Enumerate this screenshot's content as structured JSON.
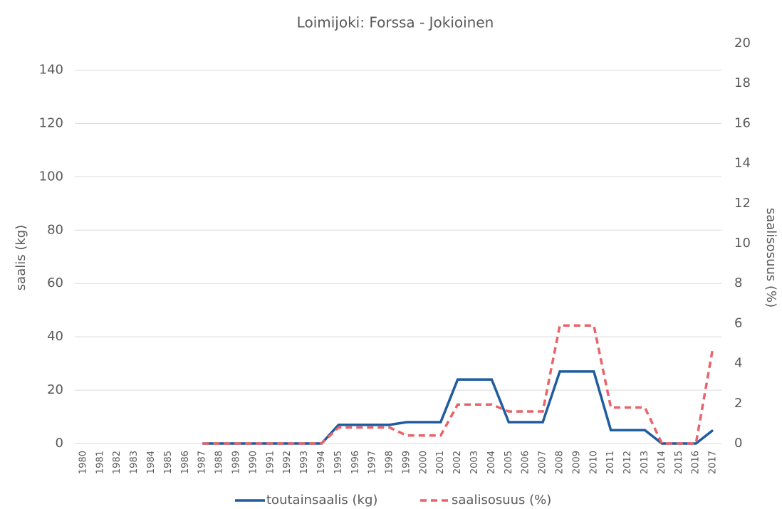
{
  "chart_data": {
    "type": "line",
    "title": "Loimijoki: Forssa - Jokioinen",
    "y_label": "saalis (kg)",
    "y2_label": "saalisosuus (%)",
    "categories": [
      "1980",
      "1981",
      "1982",
      "1983",
      "1984",
      "1985",
      "1986",
      "1987",
      "1988",
      "1989",
      "1990",
      "1991",
      "1992",
      "1993",
      "1994",
      "1995",
      "1996",
      "1997",
      "1998",
      "1999",
      "2000",
      "2001",
      "2002",
      "2003",
      "2004",
      "2005",
      "2006",
      "2007",
      "2008",
      "2009",
      "2010",
      "2011",
      "2012",
      "2013",
      "2014",
      "2015",
      "2016",
      "2017"
    ],
    "series": [
      {
        "name": "toutainsaalis (kg)",
        "color": "#1f5c9e",
        "style": "solid",
        "values": [
          null,
          null,
          null,
          null,
          null,
          null,
          null,
          0,
          0,
          0,
          0,
          0,
          0,
          0,
          0,
          7,
          7,
          7,
          7,
          8,
          8,
          8,
          24,
          24,
          24,
          8,
          8,
          8,
          27,
          27,
          27,
          5,
          5,
          5,
          0,
          0,
          0,
          5
        ]
      },
      {
        "name": "saalisosuus (%)",
        "color": "#e8646a",
        "style": "dashed",
        "axis": "y2",
        "values": [
          null,
          null,
          null,
          null,
          null,
          null,
          null,
          0,
          0,
          0,
          0,
          0,
          0,
          0,
          0,
          0.8,
          0.8,
          0.8,
          0.8,
          0.4,
          0.4,
          0.4,
          1.95,
          1.95,
          1.95,
          1.6,
          1.6,
          1.6,
          5.9,
          5.9,
          5.9,
          1.8,
          1.8,
          1.8,
          0,
          0,
          0,
          4.8
        ]
      }
    ],
    "ylim": [
      0,
      150
    ],
    "yticks": [
      0,
      20,
      40,
      60,
      80,
      100,
      120,
      140
    ],
    "y2lim": [
      0,
      20
    ],
    "y2ticks": [
      0,
      2,
      4,
      6,
      8,
      10,
      12,
      14,
      16,
      18,
      20
    ],
    "grid": true,
    "legend": "bottom"
  }
}
